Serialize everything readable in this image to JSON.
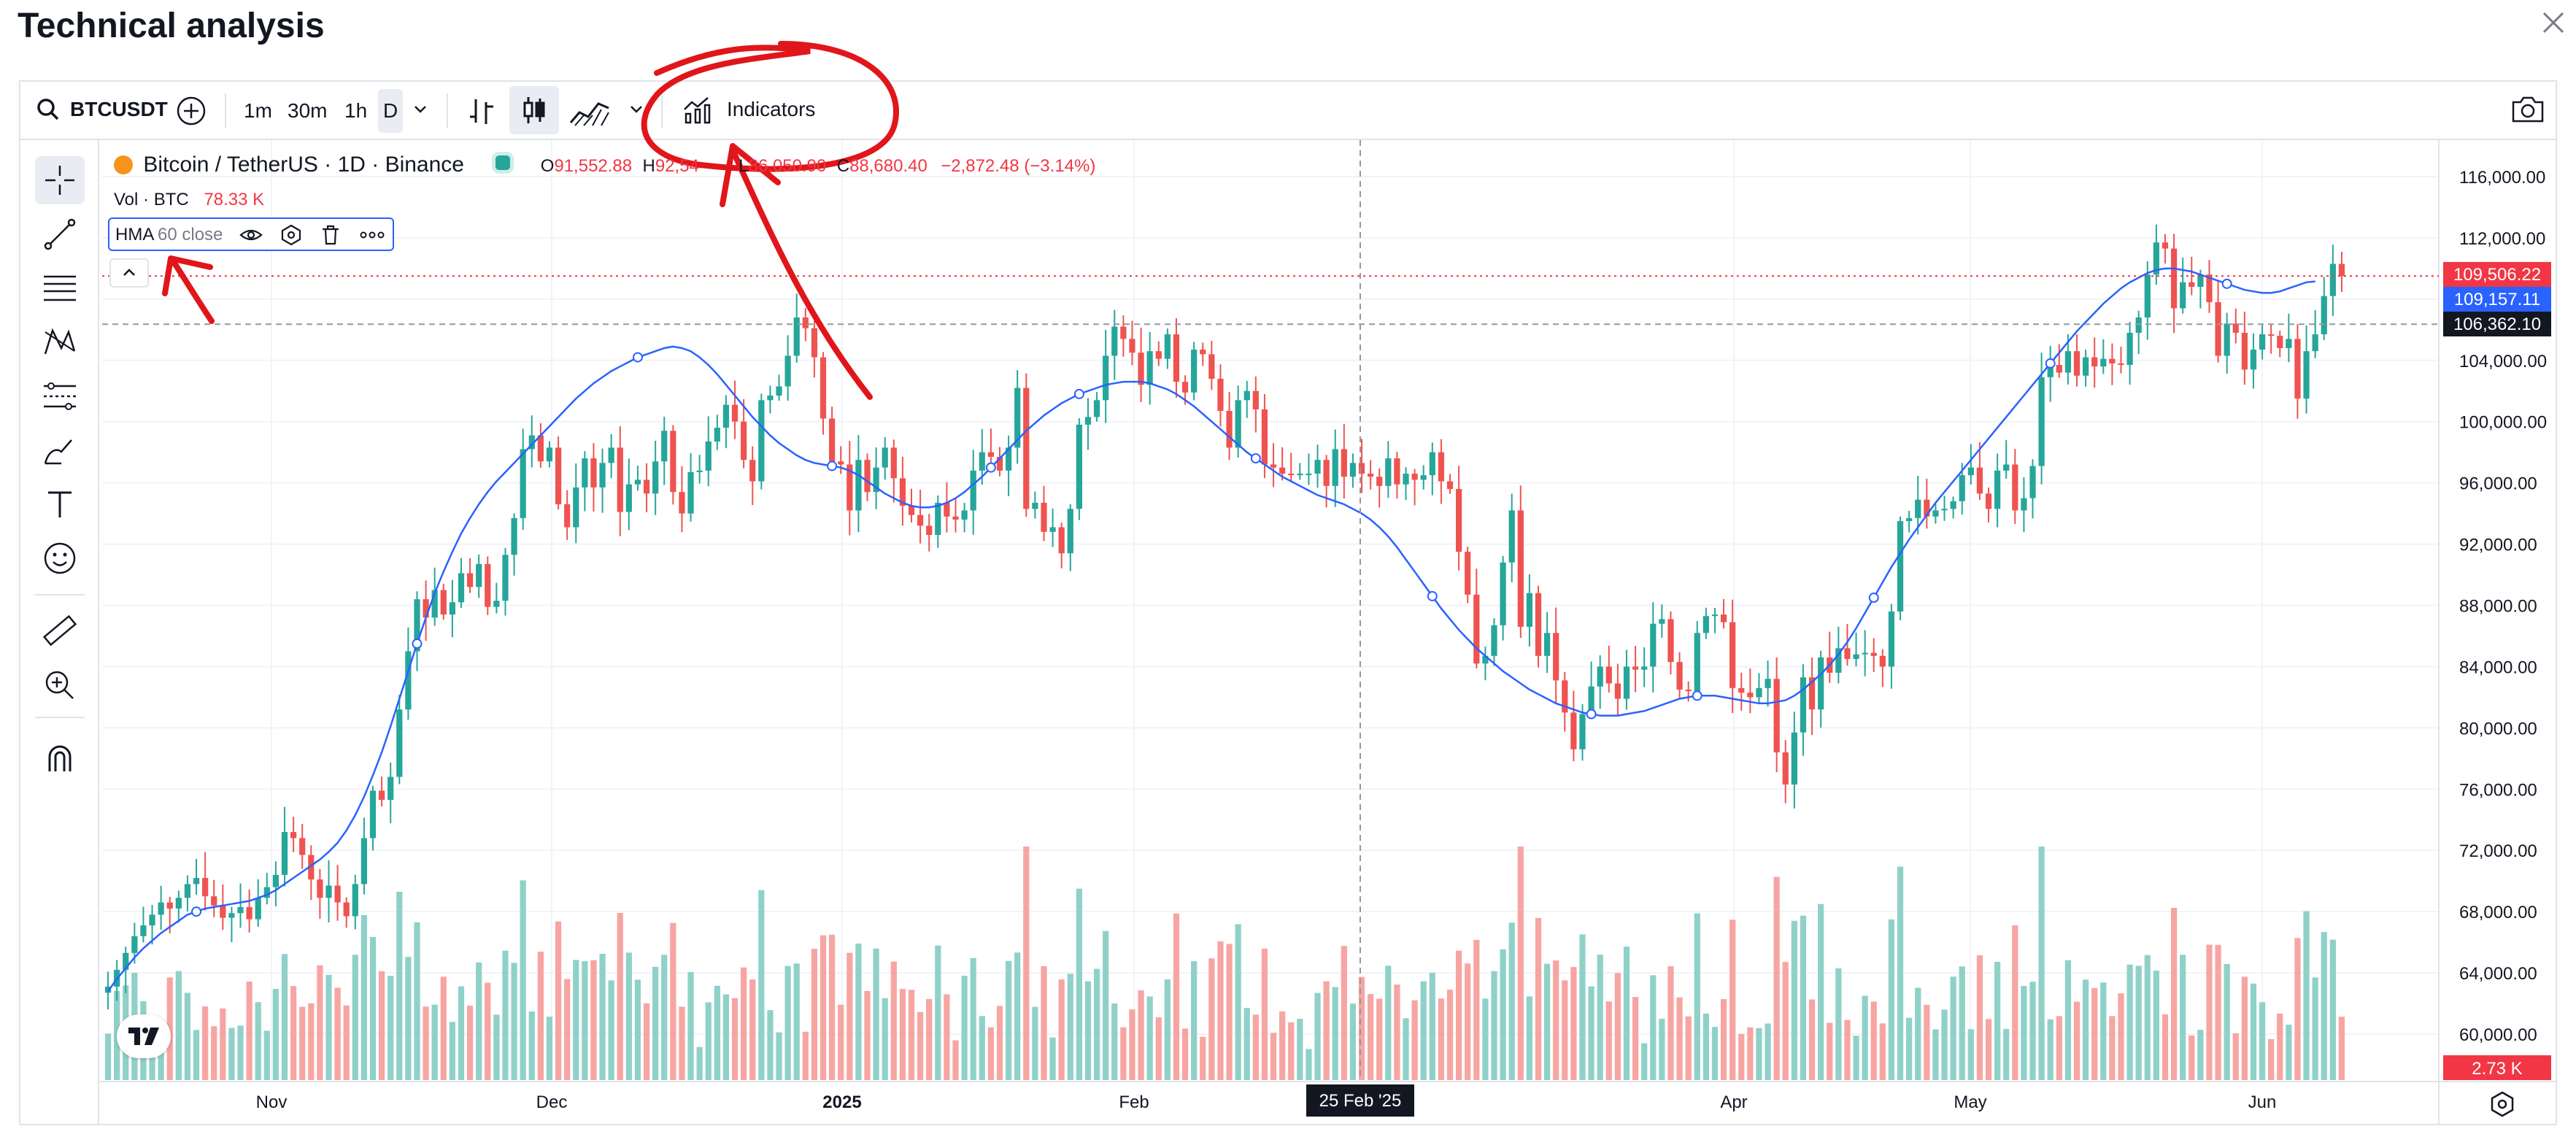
{
  "header": {
    "title": "Technical analysis"
  },
  "toolbar": {
    "symbol": "BTCUSDT",
    "intervals": [
      "1m",
      "30m",
      "1h",
      "D"
    ],
    "active_interval": "D",
    "indicators_label": "Indicators"
  },
  "legend": {
    "name": "Bitcoin / TetherUS · 1D · Binance",
    "open_label": "O",
    "open": "91,552.88",
    "high_label": "H",
    "high": "92,54",
    "low_label": "L",
    "low": "86,050.90",
    "close_label": "C",
    "close": "88,680.40",
    "change": "−2,872.48 (−3.14%)",
    "vol_label": "Vol · BTC",
    "vol_value": "78.33 K",
    "hma_name": "HMA",
    "hma_params": "60 close"
  },
  "colors": {
    "up": "#26a69a",
    "down": "#ef5350",
    "hma": "#2962ff",
    "vol_up": "#8fd1c8",
    "vol_down": "#f7a5a2",
    "annotation": "#e0161b"
  },
  "chart_data": {
    "type": "candlestick",
    "title": "Bitcoin / TetherUS · 1D · Binance",
    "y_range": [
      57000,
      118000
    ],
    "y_ticks": [
      "116,000.00",
      "112,000.00",
      "108,000.00",
      "104,000.00",
      "100,000.00",
      "96,000.00",
      "92,000.00",
      "88,000.00",
      "84,000.00",
      "80,000.00",
      "76,000.00",
      "72,000.00",
      "68,000.00",
      "64,000.00",
      "60,000.00"
    ],
    "x_ticks": [
      "Nov",
      "Dec",
      "2025",
      "Feb",
      "Apr",
      "May",
      "Jun"
    ],
    "crosshair_date": "25 Feb '25",
    "price_labels": [
      {
        "text": "109,506.22",
        "value": 109506.22,
        "color": "#f23645"
      },
      {
        "text": "109,157.11",
        "value": 109157.11,
        "color": "#2962ff"
      },
      {
        "text": "106,362.10",
        "value": 106362.1,
        "color": "#131722"
      }
    ],
    "volume_label": "2.73 K",
    "series": [
      {
        "name": "Close",
        "values": [
          63100,
          64200,
          65300,
          66400,
          67100,
          67800,
          68600,
          68200,
          68900,
          69800,
          70200,
          69000,
          68400,
          67600,
          67900,
          68300,
          67500,
          68900,
          69600,
          70400,
          73200,
          72800,
          71700,
          70100,
          68900,
          69700,
          68600,
          67700,
          69800,
          72800,
          75900,
          75300,
          76800,
          81200,
          85000,
          88400,
          87200,
          89000,
          87400,
          88200,
          90100,
          89200,
          90700,
          87900,
          88300,
          91300,
          93700,
          98200,
          99100,
          97400,
          98300,
          94600,
          93100,
          95700,
          97600,
          95700,
          97300,
          98300,
          94100,
          95900,
          96200,
          95300,
          97400,
          99400,
          95400,
          94000,
          96700,
          96800,
          98700,
          99600,
          101100,
          100000,
          97500,
          96100,
          101400,
          101700,
          102300,
          104300,
          106800,
          106100,
          104200,
          100200,
          97400,
          97200,
          94200,
          97500,
          95400,
          97000,
          98300,
          96300,
          94500,
          93900,
          93200,
          92600,
          94700,
          93800,
          93600,
          94200,
          96800,
          98000,
          97700,
          96800,
          98300,
          102200,
          94300,
          94700,
          92800,
          93100,
          91400,
          94300,
          99800,
          100300,
          101400,
          104300,
          106200,
          105400,
          104500,
          102400,
          104600,
          104100,
          105700,
          102600,
          101900,
          104700,
          104400,
          102800,
          100700,
          98300,
          101400,
          102000,
          100800,
          97200,
          97000,
          96600,
          96500,
          96600,
          96600,
          97500,
          95800,
          98200,
          96400,
          97300,
          96600,
          96400,
          95800,
          97600,
          95900,
          96600,
          96200,
          96500,
          98000,
          96100,
          95600,
          91500,
          88700,
          84200,
          84700,
          86700,
          90800,
          94200,
          86600,
          88800,
          84700,
          86200,
          83100,
          81000,
          78600,
          80900,
          82700,
          84000,
          82900,
          81900,
          84000,
          83800,
          84000,
          86800,
          87100,
          84300,
          82500,
          82400,
          86200,
          87300,
          87400,
          86900,
          82600,
          82300,
          82000,
          82600,
          83200,
          78400,
          76300,
          79700,
          83300,
          81200,
          84600,
          83600,
          85200,
          84500,
          84800,
          84900,
          84700,
          84000,
          87600,
          93500,
          93700,
          94900,
          93800,
          94200,
          94300,
          94800,
          96500,
          97000,
          95300,
          94300,
          96800,
          97200,
          94200,
          95000,
          97100,
          102900,
          103700,
          103200,
          104600,
          103000,
          104200,
          103600,
          104100,
          103800,
          103700,
          105800,
          106800,
          109600,
          111700,
          111300,
          107400,
          109100,
          108800,
          109600,
          107800,
          104300,
          106400,
          105800,
          103400,
          104700,
          105700,
          105600,
          104800,
          105400,
          101500,
          104600,
          105700,
          108200,
          110300,
          109500
        ]
      },
      {
        "name": "HMA 60 close",
        "values": [
          62800,
          63600,
          64300,
          65000,
          65600,
          66100,
          66600,
          67000,
          67400,
          67800,
          68000,
          68200,
          68300,
          68400,
          68500,
          68600,
          68700,
          68900,
          69100,
          69400,
          69800,
          70200,
          70600,
          71000,
          71400,
          71900,
          72500,
          73300,
          74300,
          75500,
          76900,
          78400,
          80100,
          81900,
          83700,
          85500,
          87200,
          88800,
          90200,
          91500,
          92700,
          93700,
          94600,
          95400,
          96100,
          96700,
          97300,
          97900,
          98500,
          99100,
          99700,
          100300,
          100900,
          101500,
          102000,
          102500,
          102900,
          103300,
          103600,
          103900,
          104200,
          104400,
          104600,
          104800,
          104900,
          104800,
          104600,
          104200,
          103700,
          103100,
          102400,
          101700,
          101000,
          100300,
          99700,
          99100,
          98600,
          98200,
          97800,
          97500,
          97300,
          97200,
          97100,
          97000,
          96800,
          96500,
          96100,
          95700,
          95300,
          95000,
          94700,
          94500,
          94400,
          94400,
          94500,
          94700,
          95000,
          95400,
          95900,
          96400,
          97000,
          97600,
          98200,
          98800,
          99400,
          99900,
          100400,
          100800,
          101200,
          101500,
          101800,
          102000,
          102200,
          102400,
          102500,
          102600,
          102600,
          102600,
          102500,
          102300,
          102100,
          101800,
          101400,
          101000,
          100500,
          100000,
          99500,
          99000,
          98500,
          98000,
          97600,
          97200,
          96800,
          96400,
          96100,
          95800,
          95500,
          95200,
          95000,
          94800,
          94600,
          94300,
          94000,
          93600,
          93100,
          92500,
          91800,
          91000,
          90200,
          89400,
          88600,
          87800,
          87100,
          86400,
          85800,
          85200,
          84700,
          84200,
          83700,
          83300,
          82900,
          82500,
          82200,
          81900,
          81600,
          81400,
          81200,
          81000,
          80900,
          80800,
          80800,
          80800,
          80900,
          81000,
          81100,
          81300,
          81500,
          81700,
          81900,
          82000,
          82100,
          82100,
          82100,
          82000,
          81900,
          81800,
          81700,
          81600,
          81600,
          81700,
          81800,
          82100,
          82500,
          83000,
          83500,
          84100,
          84800,
          85600,
          86500,
          87500,
          88500,
          89500,
          90500,
          91400,
          92300,
          93100,
          93900,
          94700,
          95400,
          96100,
          96800,
          97500,
          98200,
          98900,
          99600,
          100300,
          101000,
          101700,
          102400,
          103100,
          103800,
          104500,
          105200,
          105900,
          106500,
          107100,
          107700,
          108200,
          108700,
          109100,
          109400,
          109700,
          109900,
          110000,
          110000,
          109900,
          109800,
          109600,
          109400,
          109200,
          109000,
          108800,
          108600,
          108500,
          108400,
          108400,
          108500,
          108700,
          108900,
          109100,
          109157
        ]
      }
    ]
  }
}
